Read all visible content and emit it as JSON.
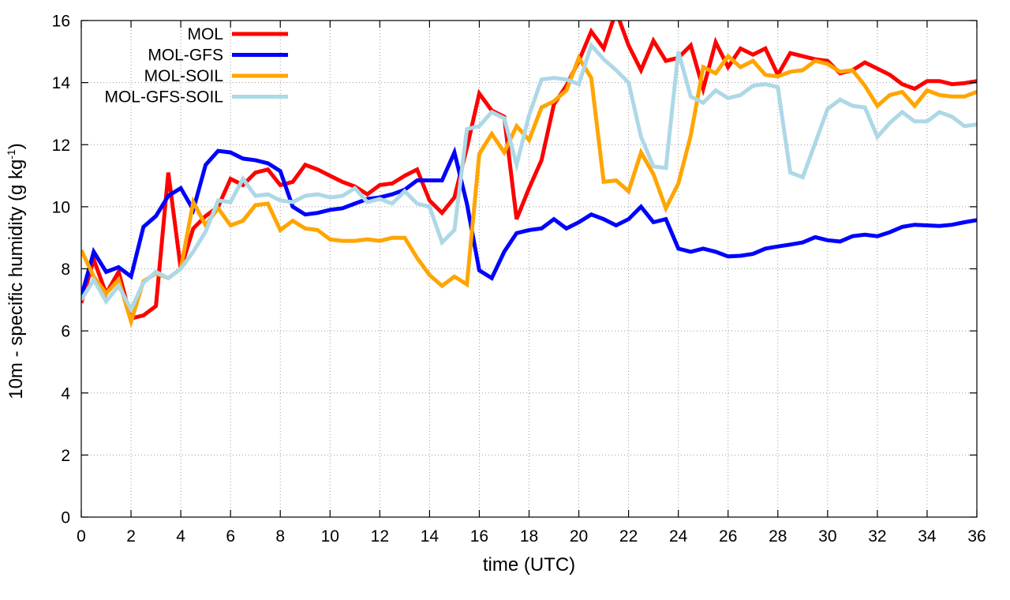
{
  "chart_data": {
    "type": "line",
    "title": "",
    "xlabel": "time (UTC)",
    "ylabel_main": "10m - specific humidity (g kg",
    "ylabel_sup": "-1",
    "ylabel_close": ")",
    "xlim": [
      0,
      36
    ],
    "ylim": [
      0,
      16
    ],
    "xticks": [
      "0",
      "2",
      "4",
      "6",
      "8",
      "10",
      "12",
      "14",
      "16",
      "18",
      "20",
      "22",
      "24",
      "26",
      "28",
      "30",
      "32",
      "34",
      "36"
    ],
    "yticks": [
      "0",
      "2",
      "4",
      "6",
      "8",
      "10",
      "12",
      "14",
      "16"
    ],
    "grid": true,
    "legend_position": "top-left",
    "x": [
      0,
      0.5,
      1,
      1.5,
      2,
      2.5,
      3,
      3.5,
      4,
      4.5,
      5,
      5.5,
      6,
      6.5,
      7,
      7.5,
      8,
      8.5,
      9,
      9.5,
      10,
      10.5,
      11,
      11.5,
      12,
      12.5,
      13,
      13.5,
      14,
      14.5,
      15,
      15.5,
      16,
      16.5,
      17,
      17.5,
      18,
      18.5,
      19,
      19.5,
      20,
      20.5,
      21,
      21.5,
      22,
      22.5,
      23,
      23.5,
      24,
      24.5,
      25,
      25.5,
      26,
      26.5,
      27,
      27.5,
      28,
      28.5,
      29,
      29.5,
      30,
      30.5,
      31,
      31.5,
      32,
      32.5,
      33,
      33.5,
      34,
      34.5,
      35,
      35.5,
      36
    ],
    "series": [
      {
        "name": "MOL",
        "color": "#ff0000",
        "values": [
          6.9,
          8.3,
          7.2,
          7.9,
          6.4,
          6.5,
          6.8,
          11.1,
          8.0,
          9.3,
          9.7,
          10.0,
          10.9,
          10.7,
          11.1,
          11.2,
          10.7,
          10.8,
          11.35,
          11.2,
          11.0,
          10.8,
          10.65,
          10.4,
          10.7,
          10.75,
          11.0,
          11.2,
          10.2,
          9.8,
          10.3,
          11.9,
          13.65,
          13.1,
          12.9,
          9.6,
          10.6,
          11.5,
          13.3,
          13.9,
          14.7,
          15.65,
          15.1,
          16.3,
          15.2,
          14.4,
          15.35,
          14.7,
          14.8,
          15.2,
          13.8,
          15.3,
          14.5,
          15.1,
          14.9,
          15.1,
          14.25,
          14.95,
          14.85,
          14.75,
          14.7,
          14.3,
          14.4,
          14.65,
          14.45,
          14.25,
          13.95,
          13.8,
          14.05,
          14.05,
          13.95,
          13.98,
          14.05
        ]
      },
      {
        "name": "MOL-GFS",
        "color": "#0000ff",
        "values": [
          7.1,
          8.55,
          7.9,
          8.05,
          7.75,
          9.35,
          9.7,
          10.35,
          10.6,
          9.9,
          11.35,
          11.8,
          11.75,
          11.55,
          11.5,
          11.4,
          11.15,
          10.0,
          9.75,
          9.8,
          9.9,
          9.95,
          10.1,
          10.25,
          10.3,
          10.4,
          10.55,
          10.85,
          10.85,
          10.85,
          11.75,
          10.1,
          7.95,
          7.7,
          8.55,
          9.15,
          9.25,
          9.3,
          9.6,
          9.3,
          9.5,
          9.75,
          9.6,
          9.4,
          9.6,
          10.0,
          9.5,
          9.6,
          8.65,
          8.55,
          8.65,
          8.55,
          8.4,
          8.42,
          8.48,
          8.65,
          8.72,
          8.78,
          8.85,
          9.02,
          8.92,
          8.88,
          9.05,
          9.1,
          9.05,
          9.18,
          9.35,
          9.42,
          9.4,
          9.38,
          9.42,
          9.5,
          9.57
        ]
      },
      {
        "name": "MOL-SOIL",
        "color": "#ffa500",
        "values": [
          8.6,
          7.75,
          7.2,
          7.65,
          6.3,
          7.6,
          7.85,
          7.7,
          8.0,
          10.15,
          9.4,
          9.95,
          9.4,
          9.55,
          10.05,
          10.1,
          9.25,
          9.55,
          9.3,
          9.25,
          8.95,
          8.9,
          8.9,
          8.95,
          8.9,
          9.0,
          9.0,
          8.35,
          7.8,
          7.45,
          7.75,
          7.5,
          11.7,
          12.35,
          11.75,
          12.6,
          12.15,
          13.2,
          13.4,
          13.75,
          14.8,
          14.15,
          10.8,
          10.85,
          10.5,
          11.75,
          11.05,
          9.95,
          10.75,
          12.3,
          14.5,
          14.3,
          14.85,
          14.5,
          14.7,
          14.25,
          14.2,
          14.35,
          14.4,
          14.7,
          14.6,
          14.35,
          14.4,
          13.9,
          13.25,
          13.6,
          13.7,
          13.25,
          13.75,
          13.6,
          13.55,
          13.55,
          13.7
        ]
      },
      {
        "name": "MOL-GFS-SOIL",
        "color": "#add8e6",
        "values": [
          7.0,
          7.65,
          6.95,
          7.45,
          6.7,
          7.55,
          7.9,
          7.7,
          8.0,
          8.55,
          9.2,
          10.2,
          10.15,
          10.9,
          10.35,
          10.4,
          10.2,
          10.15,
          10.35,
          10.4,
          10.3,
          10.35,
          10.6,
          10.15,
          10.25,
          10.1,
          10.5,
          10.1,
          10.0,
          8.85,
          9.25,
          12.5,
          12.6,
          13.05,
          12.85,
          11.35,
          12.95,
          14.1,
          14.15,
          14.1,
          13.95,
          15.2,
          14.75,
          14.4,
          14.0,
          12.25,
          11.3,
          11.25,
          15.0,
          13.55,
          13.35,
          13.75,
          13.5,
          13.6,
          13.9,
          13.95,
          13.85,
          11.1,
          10.95,
          12.05,
          13.15,
          13.45,
          13.25,
          13.2,
          12.25,
          12.7,
          13.05,
          12.75,
          12.75,
          13.05,
          12.9,
          12.6,
          12.65
        ]
      }
    ]
  }
}
